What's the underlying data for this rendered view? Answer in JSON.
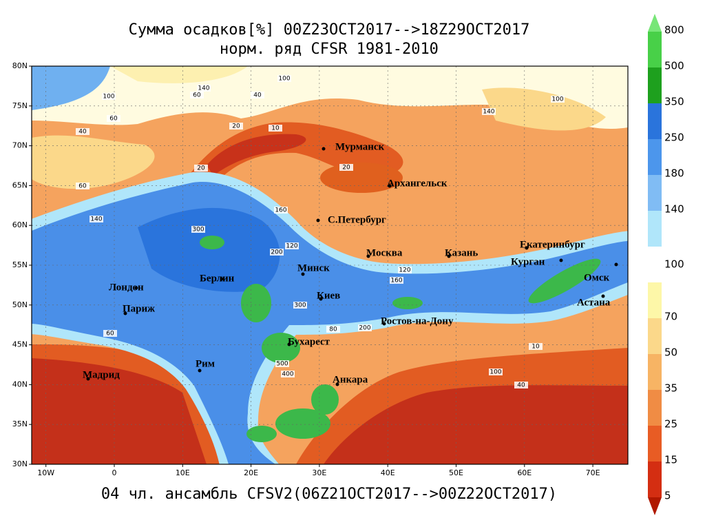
{
  "title": "Сумма осадков[%] 00Z23OCT2017-->18Z29OCT2017",
  "subtitle": "норм. ряд CFSR 1981-2010",
  "footer": "04 чл. ансамбль CFSV2(06Z21OCT2017-->00Z22OCT2017)",
  "lat_ticks": [
    {
      "value": 80,
      "label": "80N"
    },
    {
      "value": 75,
      "label": "75N"
    },
    {
      "value": 70,
      "label": "70N"
    },
    {
      "value": 65,
      "label": "65N"
    },
    {
      "value": 60,
      "label": "60N"
    },
    {
      "value": 55,
      "label": "55N"
    },
    {
      "value": 50,
      "label": "50N"
    },
    {
      "value": 45,
      "label": "45N"
    },
    {
      "value": 40,
      "label": "40N"
    },
    {
      "value": 35,
      "label": "35N"
    },
    {
      "value": 30,
      "label": "30N"
    }
  ],
  "lon_ticks": [
    {
      "value": -10,
      "label": "10W"
    },
    0,
    {
      "value": 10,
      "label": "10E"
    },
    {
      "value": 20,
      "label": "20E"
    },
    {
      "value": 30,
      "label": "30E"
    },
    {
      "value": 40,
      "label": "40E"
    },
    {
      "value": 50,
      "label": "50E"
    },
    {
      "value": 60,
      "label": "60E"
    },
    {
      "value": 70,
      "label": "70E"
    }
  ],
  "colorbar": {
    "upper_labels": [
      800,
      500,
      350,
      250,
      180,
      140
    ],
    "upper_colors": [
      "#78e678",
      "#48d048",
      "#1ea01e",
      "#2a74dc",
      "#4c96ec",
      "#80bcf4",
      "#b0e6fa"
    ],
    "middle_label": 100,
    "lower_labels": [
      70,
      50,
      35,
      25,
      15,
      5
    ],
    "lower_colors": [
      "#fdf7a8",
      "#fbd88a",
      "#f7b464",
      "#f08c44",
      "#e85c24",
      "#d42e12",
      "#b01800"
    ]
  },
  "cities": [
    "Мурманск",
    "Архангельск",
    "С.Петербург",
    "Москва",
    "Казань",
    "Екатеринбург",
    "Курган",
    "Омск",
    "Астана",
    "Минск",
    "Берлин",
    "Лондон",
    "Париж",
    "Киев",
    "Ростов-на-Дону",
    "Бухарест",
    "Рим",
    "Мадрид",
    "Анкара"
  ],
  "contour_labels": [
    100,
    140,
    60,
    40,
    20,
    10,
    100,
    140,
    60,
    40,
    20,
    60,
    140,
    300,
    160,
    200,
    300,
    500,
    400,
    120,
    160,
    200,
    80,
    20,
    10,
    100,
    40,
    60,
    120,
    100
  ]
}
